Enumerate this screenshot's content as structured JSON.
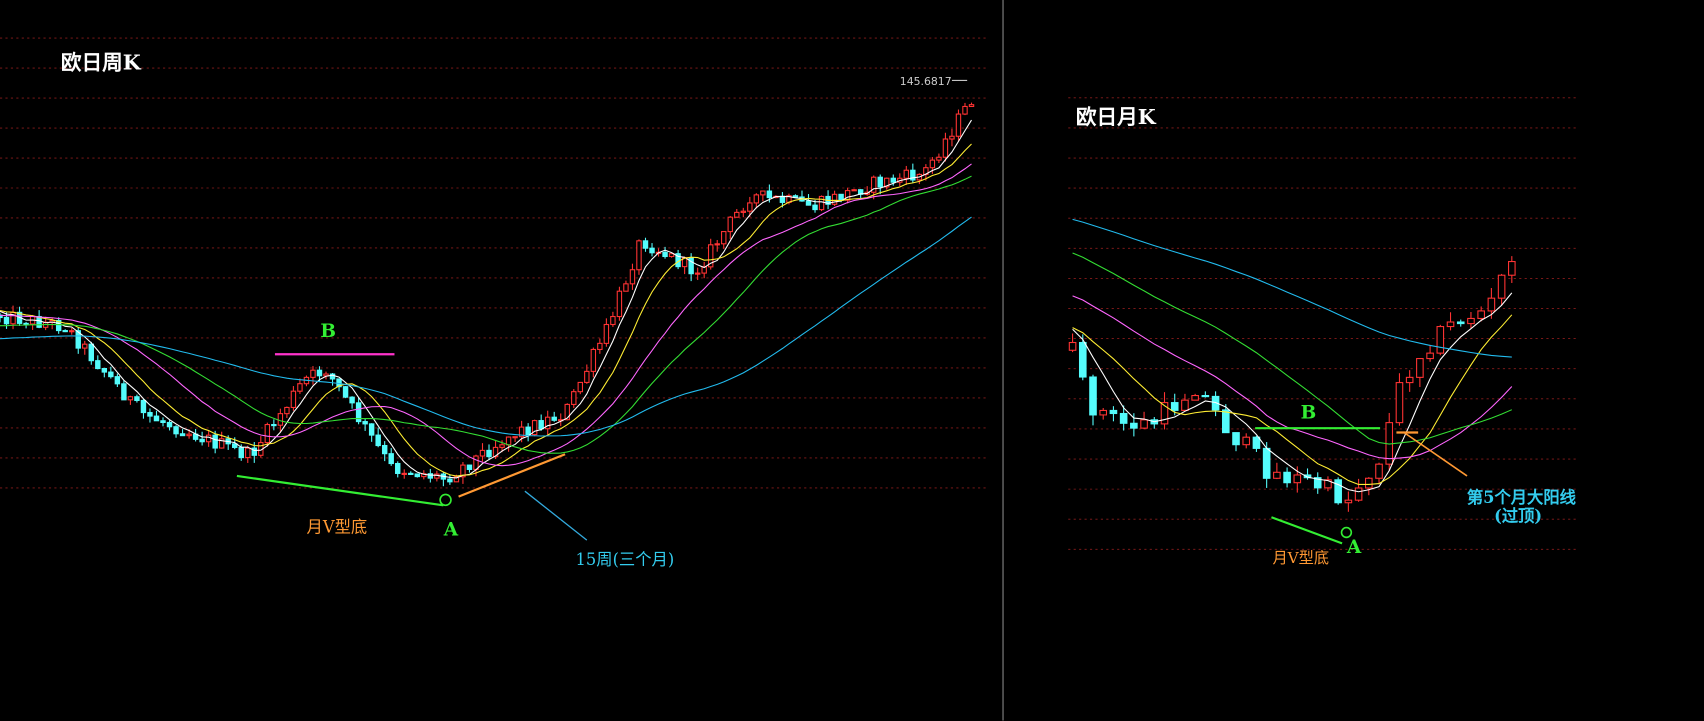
{
  "left_panel": {
    "title": "欧日周K",
    "price_label": "145.6817",
    "labels": {
      "b": "B",
      "a": "A",
      "pattern": "月V型底",
      "duration": "15周(三个月)"
    }
  },
  "right_panel": {
    "title": "欧日月K",
    "labels": {
      "b": "B",
      "a": "A",
      "pattern": "月V型底",
      "note_line1": "第5个月大阳线",
      "note_line2": "(过顶)"
    }
  }
}
